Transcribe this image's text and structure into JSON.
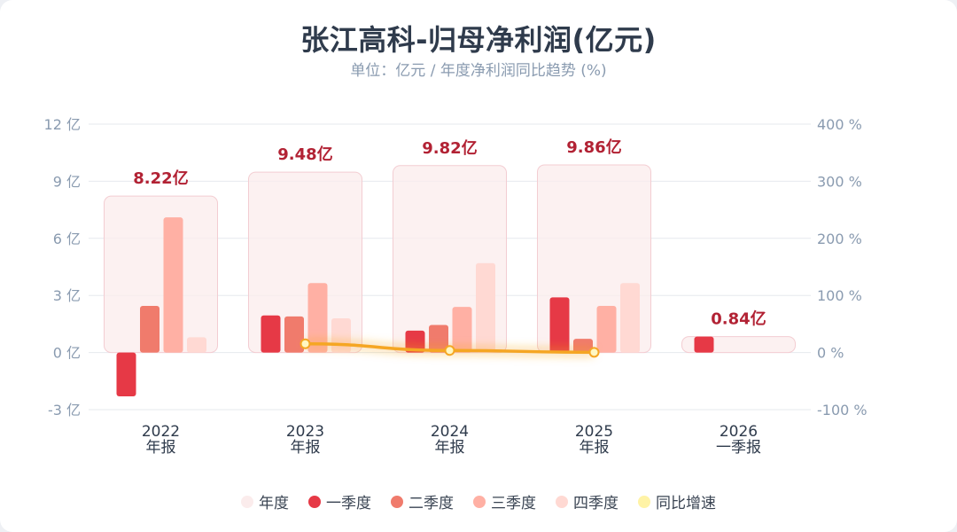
{
  "title": "张江高科-归母净利润(亿元)",
  "subtitle": "单位：亿元 / 年度净利润同比趋势 (%)",
  "chart_data": {
    "type": "bar",
    "categories": [
      {
        "year": "2022",
        "period": "年报"
      },
      {
        "year": "2023",
        "period": "年报"
      },
      {
        "year": "2024",
        "period": "年报"
      },
      {
        "year": "2025",
        "period": "年报"
      },
      {
        "year": "2026",
        "period": "一季报"
      }
    ],
    "annual": [
      8.22,
      9.48,
      9.82,
      9.86,
      0.84
    ],
    "annual_labels": [
      "8.22亿",
      "9.48亿",
      "9.82亿",
      "9.86亿",
      "0.84亿"
    ],
    "series": [
      {
        "name": "一季度",
        "color": "#e63946",
        "values": [
          -2.3,
          1.95,
          1.15,
          2.9,
          0.84
        ]
      },
      {
        "name": "二季度",
        "color": "#f07b6c",
        "values": [
          2.45,
          1.9,
          1.45,
          0.72,
          null
        ]
      },
      {
        "name": "三季度",
        "color": "#ffb0a4",
        "values": [
          7.1,
          3.65,
          2.4,
          2.45,
          null
        ]
      },
      {
        "name": "四季度",
        "color": "#ffd9d3",
        "values": [
          0.8,
          1.8,
          4.7,
          3.65,
          null
        ]
      }
    ],
    "annual_legend": {
      "name": "年度",
      "color": "#fbecec"
    },
    "yoy": {
      "name": "同比增速",
      "color": "#f5a623",
      "legend_color": "#fff3a6",
      "values": [
        null,
        15.3,
        3.6,
        0.4,
        null
      ]
    },
    "y_left": {
      "min": -3,
      "max": 12,
      "ticks": [
        -3,
        0,
        3,
        6,
        9,
        12
      ],
      "tick_labels": [
        "-3 亿",
        "0 亿",
        "3 亿",
        "6 亿",
        "9 亿",
        "12 亿"
      ]
    },
    "y_right": {
      "min": -100,
      "max": 400,
      "ticks": [
        -100,
        0,
        100,
        200,
        300,
        400
      ],
      "tick_labels": [
        "-100 %",
        "0 %",
        "100 %",
        "200 %",
        "300 %",
        "400 %"
      ]
    },
    "grid": true,
    "legend_position": "bottom"
  }
}
